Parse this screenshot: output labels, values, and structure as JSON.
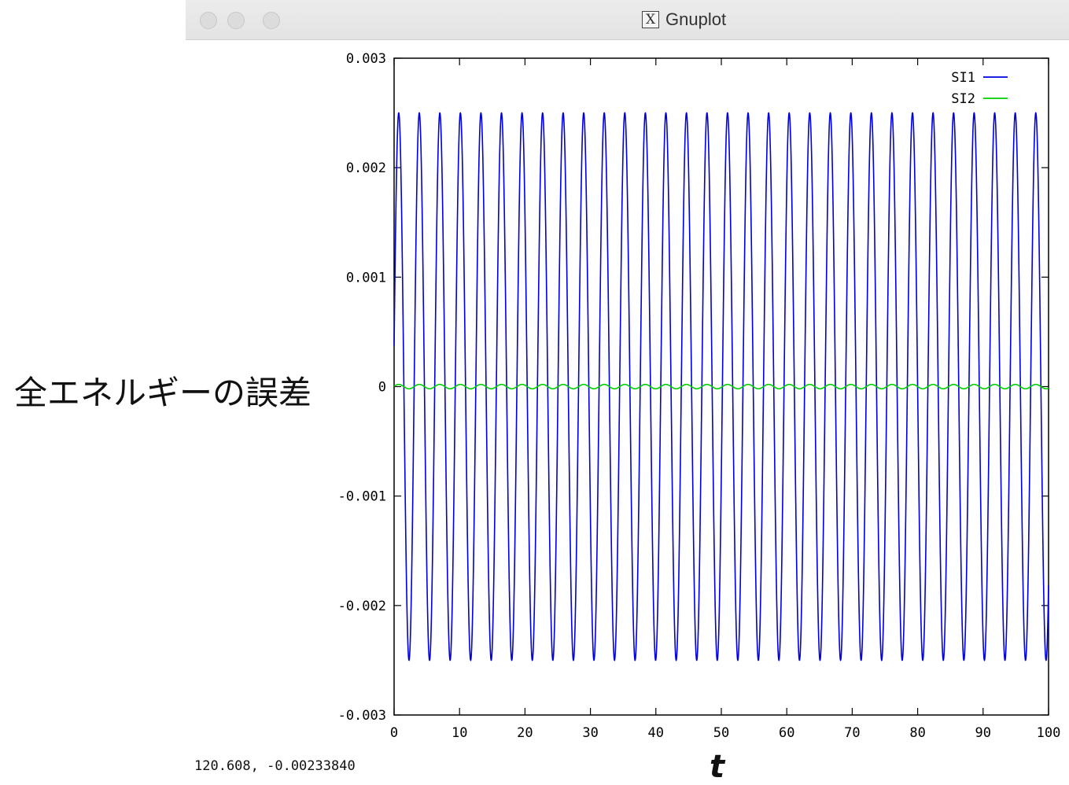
{
  "window": {
    "title": "Gnuplot",
    "controls": [
      "close-button",
      "minimize-button",
      "zoom-button"
    ],
    "app_icon": "x11-icon"
  },
  "status_text": "120.608, -0.00233840",
  "chart_data": {
    "type": "line",
    "xlabel": "t",
    "ylabel": "全エネルギーの誤差",
    "xlim": [
      0,
      100
    ],
    "ylim": [
      -0.003,
      0.003
    ],
    "x_ticks": [
      "0",
      "10",
      "20",
      "30",
      "40",
      "50",
      "60",
      "70",
      "80",
      "90",
      "100"
    ],
    "y_ticks": [
      "0.003",
      "0.002",
      "0.001",
      "0",
      "-0.001",
      "-0.002",
      "-0.003"
    ],
    "legend_position": "top-right",
    "grid": false,
    "series": [
      {
        "name": "SI1",
        "color": "#0000e0",
        "shape": "oscillation",
        "amplitude": 0.0025,
        "period": 3.14,
        "x_start": 0,
        "x_end": 100
      },
      {
        "name": "SI2",
        "color": "#00d000",
        "shape": "oscillation",
        "amplitude": 2e-05,
        "period": 3.14,
        "x_start": 0,
        "x_end": 100
      }
    ]
  }
}
